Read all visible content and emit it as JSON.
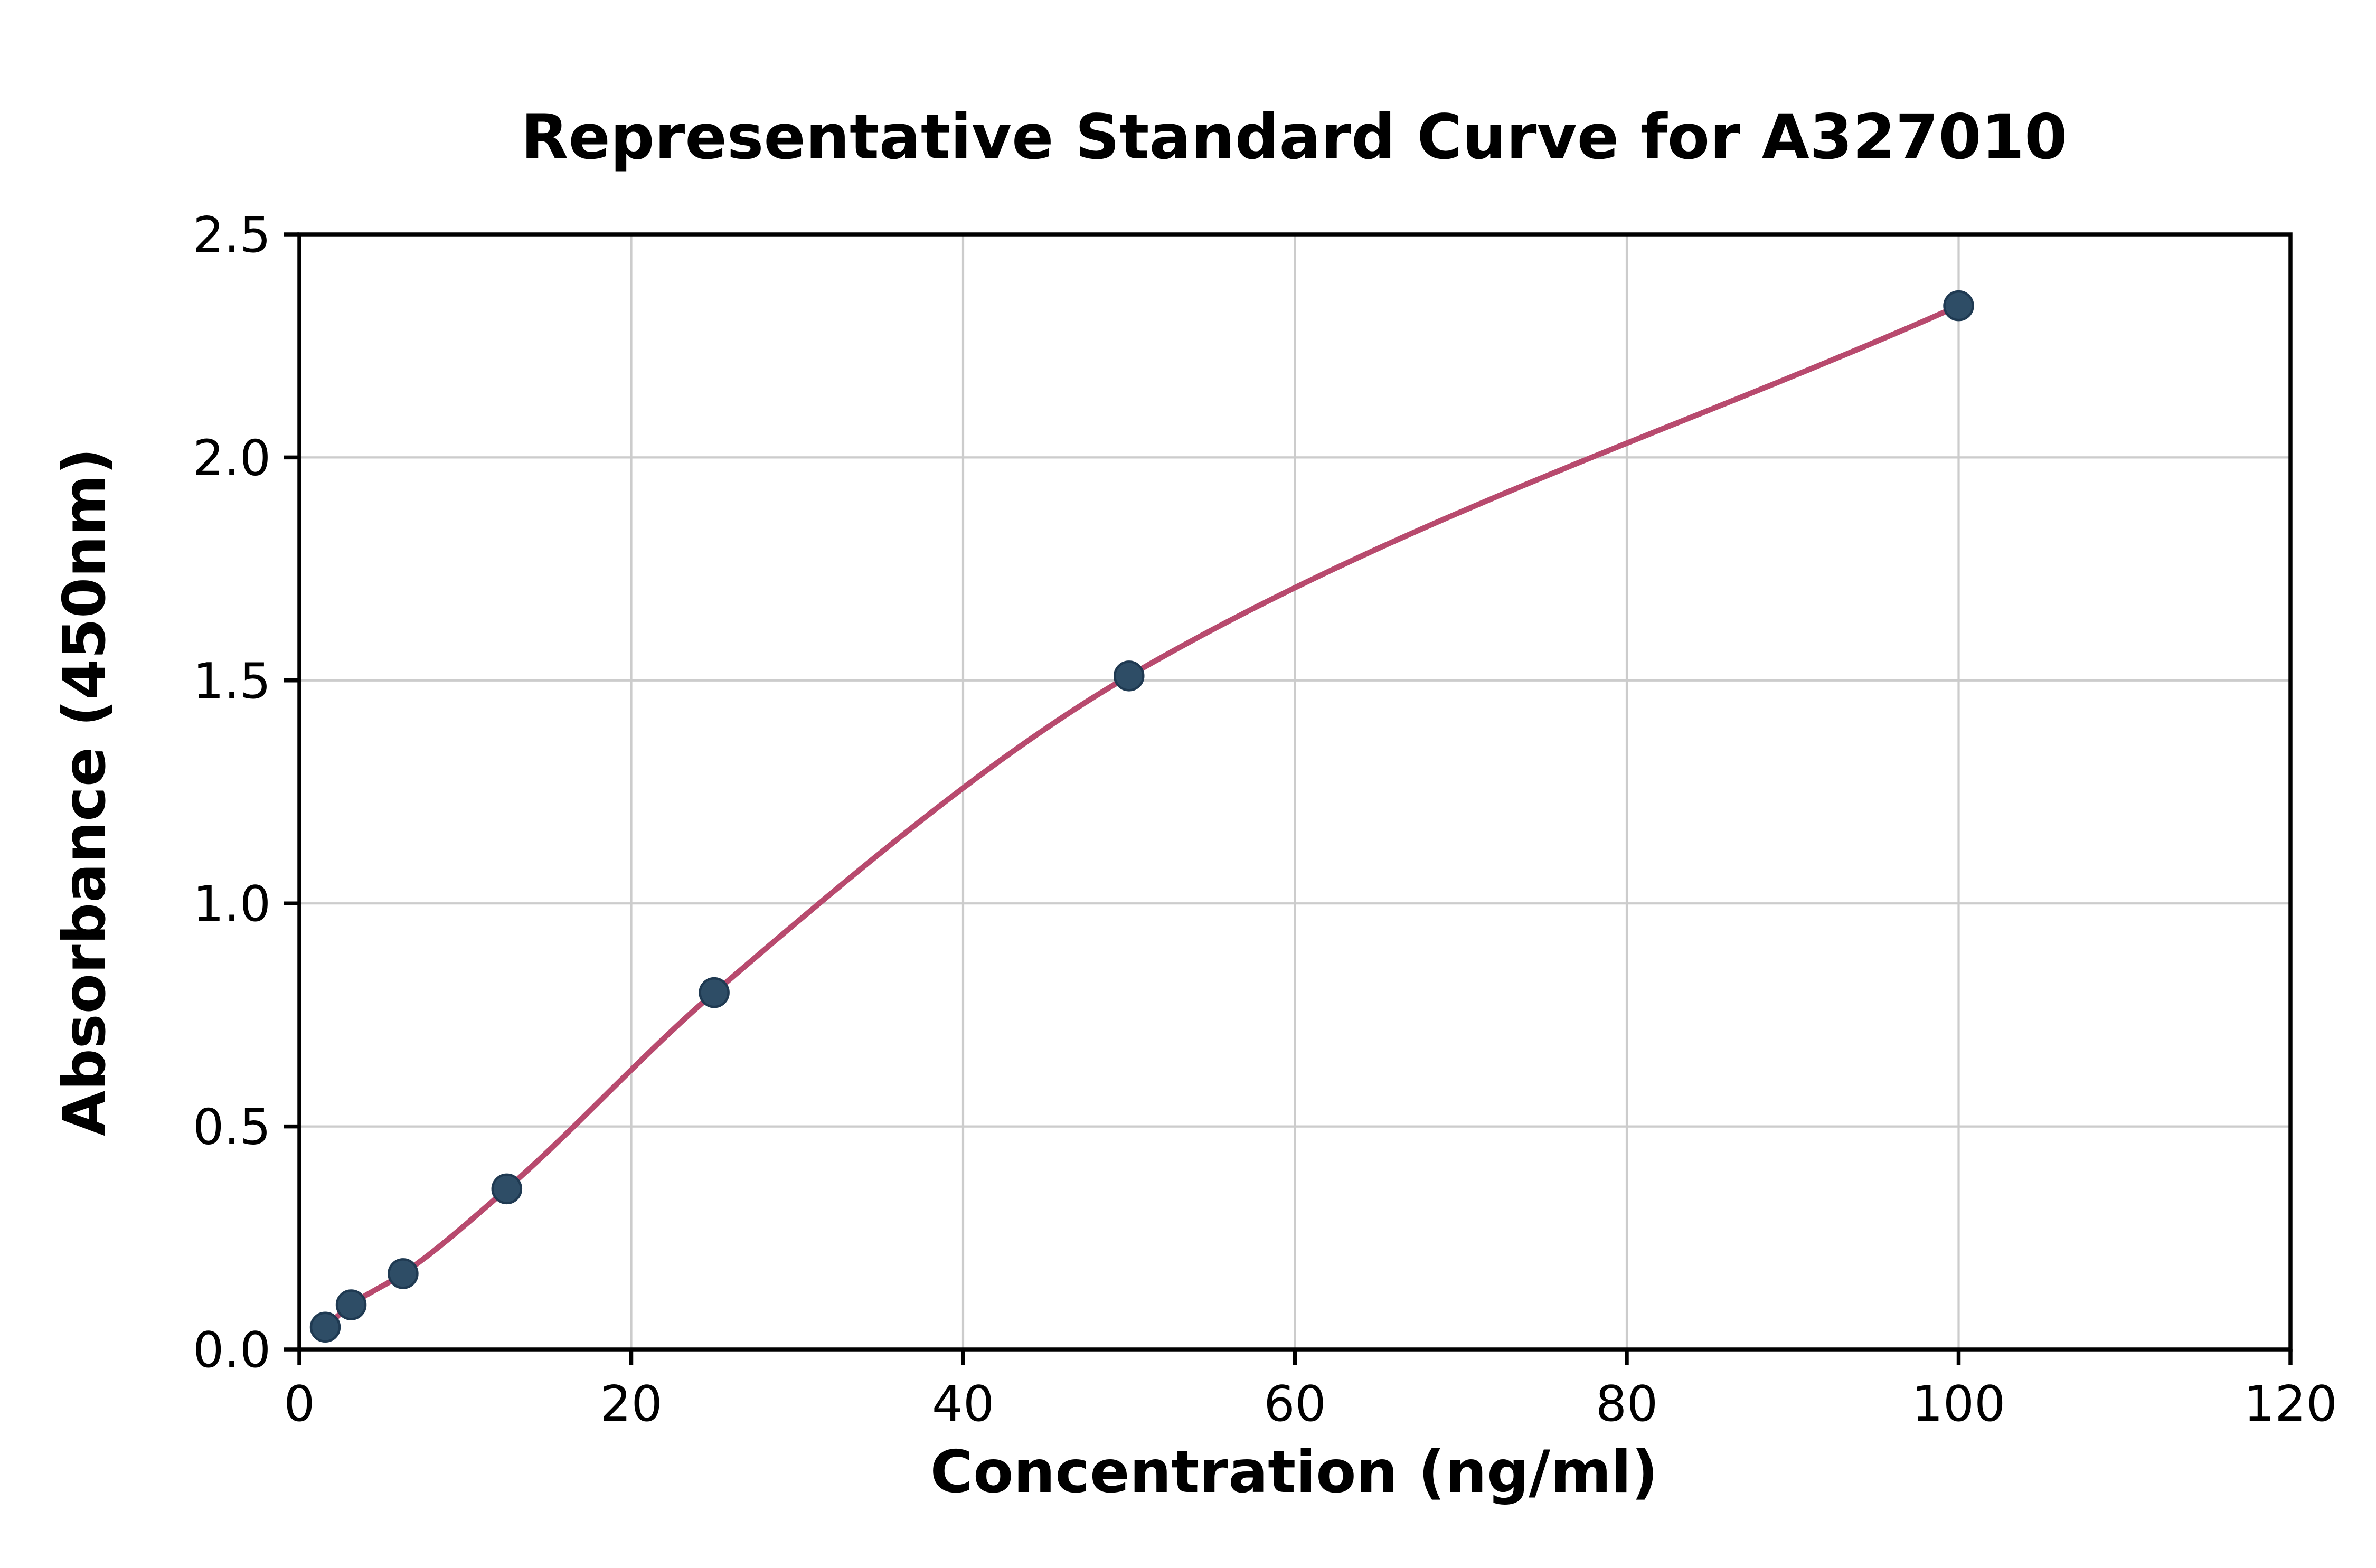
{
  "chart_data": {
    "type": "scatter",
    "title": "Representative Standard Curve for A327010",
    "xlabel": "Concentration (ng/ml)",
    "ylabel": "Absorbance (450nm)",
    "xlim": [
      0,
      120
    ],
    "ylim": [
      0,
      2.5
    ],
    "xticks": [
      0,
      20,
      40,
      60,
      80,
      100,
      120
    ],
    "xtick_labels": [
      "0",
      "20",
      "40",
      "60",
      "80",
      "100",
      "120"
    ],
    "yticks": [
      0.0,
      0.5,
      1.0,
      1.5,
      2.0,
      2.5
    ],
    "ytick_labels": [
      "0.0",
      "0.5",
      "1.0",
      "1.5",
      "2.0",
      "2.5"
    ],
    "grid": true,
    "legend": "none",
    "points": [
      {
        "x": 1.56,
        "y": 0.05
      },
      {
        "x": 3.12,
        "y": 0.1
      },
      {
        "x": 6.25,
        "y": 0.17
      },
      {
        "x": 12.5,
        "y": 0.36
      },
      {
        "x": 25.0,
        "y": 0.8
      },
      {
        "x": 50.0,
        "y": 1.51
      },
      {
        "x": 100.0,
        "y": 2.34
      }
    ],
    "colors": {
      "curve": "#b84a6e",
      "point_fill": "#2e4d66",
      "point_edge": "#1f3a52",
      "grid": "#cccccc",
      "axis": "#000000",
      "background": "#ffffff"
    }
  }
}
